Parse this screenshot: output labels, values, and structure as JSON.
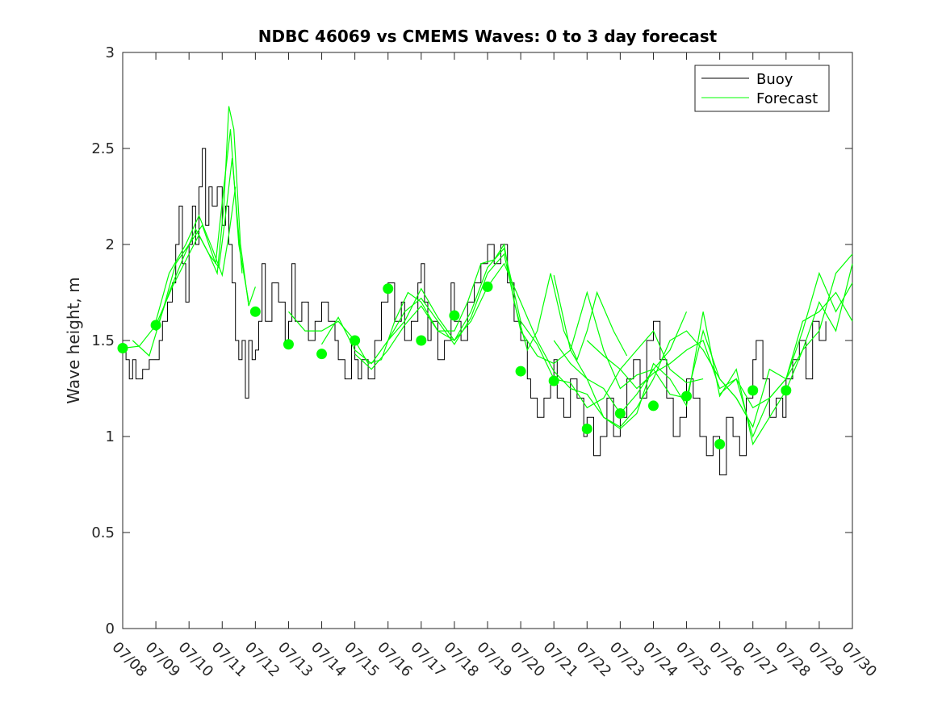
{
  "chart_data": {
    "type": "line",
    "title": "NDBC 46069 vs CMEMS Waves: 0 to 3 day forecast",
    "xlabel": "",
    "ylabel": "Wave height, m",
    "x_ticks": [
      "07/08",
      "07/09",
      "07/10",
      "07/11",
      "07/12",
      "07/13",
      "07/14",
      "07/15",
      "07/16",
      "07/17",
      "07/18",
      "07/19",
      "07/20",
      "07/21",
      "07/22",
      "07/23",
      "07/24",
      "07/25",
      "07/26",
      "07/27",
      "07/28",
      "07/29",
      "07/30"
    ],
    "xlim": [
      0,
      22
    ],
    "ylim": [
      0,
      3
    ],
    "y_ticks": [
      "0",
      "0.5",
      "1",
      "1.5",
      "2",
      "2.5",
      "3"
    ],
    "legend": {
      "position": "top-right",
      "entries": [
        "Buoy",
        "Forecast"
      ]
    },
    "colors": {
      "buoy": "#000000",
      "forecast": "#00ff00"
    },
    "buoy": {
      "name": "Buoy",
      "x": [
        0,
        0.1,
        0.2,
        0.3,
        0.4,
        0.6,
        0.8,
        1.0,
        1.1,
        1.2,
        1.35,
        1.5,
        1.6,
        1.7,
        1.8,
        1.9,
        2.0,
        2.1,
        2.2,
        2.3,
        2.4,
        2.5,
        2.6,
        2.7,
        2.85,
        3.0,
        3.1,
        3.2,
        3.3,
        3.4,
        3.5,
        3.6,
        3.7,
        3.8,
        3.9,
        4.0,
        4.1,
        4.2,
        4.3,
        4.5,
        4.7,
        4.9,
        5.0,
        5.1,
        5.2,
        5.4,
        5.6,
        5.8,
        6.0,
        6.2,
        6.4,
        6.5,
        6.7,
        6.9,
        7.0,
        7.1,
        7.2,
        7.4,
        7.6,
        7.8,
        8.0,
        8.2,
        8.4,
        8.5,
        8.7,
        8.9,
        9.0,
        9.1,
        9.2,
        9.3,
        9.5,
        9.7,
        9.9,
        10.0,
        10.2,
        10.4,
        10.6,
        10.8,
        11.0,
        11.2,
        11.4,
        11.6,
        11.8,
        12.0,
        12.2,
        12.3,
        12.5,
        12.7,
        12.9,
        13.0,
        13.1,
        13.3,
        13.5,
        13.7,
        13.9,
        14.0,
        14.2,
        14.4,
        14.6,
        14.8,
        15.0,
        15.2,
        15.4,
        15.6,
        15.8,
        16.0,
        16.2,
        16.4,
        16.6,
        16.8,
        17.0,
        17.2,
        17.4,
        17.6,
        17.8,
        18.0,
        18.2,
        18.4,
        18.6,
        18.8,
        19.0,
        19.1,
        19.3,
        19.5,
        19.7,
        19.9,
        20.0,
        20.2,
        20.4,
        20.6,
        20.8,
        21.0,
        21.2
      ],
      "values": [
        1.45,
        1.4,
        1.3,
        1.4,
        1.3,
        1.35,
        1.4,
        1.4,
        1.5,
        1.6,
        1.7,
        1.8,
        2.0,
        2.2,
        1.9,
        1.7,
        2.0,
        2.2,
        2.0,
        2.3,
        2.5,
        2.1,
        2.3,
        2.2,
        2.3,
        2.1,
        2.2,
        2.0,
        1.8,
        1.5,
        1.4,
        1.5,
        1.2,
        1.5,
        1.4,
        1.45,
        1.6,
        1.9,
        1.6,
        1.8,
        1.7,
        1.5,
        1.6,
        1.9,
        1.6,
        1.7,
        1.5,
        1.6,
        1.7,
        1.6,
        1.5,
        1.4,
        1.3,
        1.5,
        1.4,
        1.3,
        1.4,
        1.3,
        1.5,
        1.7,
        1.8,
        1.6,
        1.7,
        1.5,
        1.6,
        1.8,
        1.9,
        1.7,
        1.5,
        1.6,
        1.4,
        1.5,
        1.8,
        1.6,
        1.5,
        1.7,
        1.8,
        1.9,
        2.0,
        1.9,
        2.0,
        1.8,
        1.6,
        1.5,
        1.3,
        1.2,
        1.1,
        1.2,
        1.3,
        1.4,
        1.2,
        1.1,
        1.3,
        1.2,
        1.0,
        1.1,
        0.9,
        1.0,
        1.2,
        1.0,
        1.1,
        1.3,
        1.4,
        1.2,
        1.5,
        1.6,
        1.4,
        1.2,
        1.0,
        1.1,
        1.3,
        1.2,
        1.0,
        0.9,
        1.0,
        0.8,
        1.1,
        1.0,
        0.9,
        1.2,
        1.4,
        1.5,
        1.3,
        1.1,
        1.2,
        1.1,
        1.3,
        1.4,
        1.5,
        1.3,
        1.6,
        1.5,
        1.6
      ]
    },
    "forecast_series": [
      {
        "x": [
          0,
          0.5,
          1.0,
          1.5,
          2.0,
          2.3,
          2.6,
          2.85,
          3.05,
          3.2,
          3.35,
          3.55,
          3.8,
          4.0
        ],
        "values": [
          1.46,
          1.47,
          1.58,
          1.78,
          1.95,
          2.05,
          1.95,
          1.85,
          2.2,
          2.72,
          2.6,
          2.0,
          1.68,
          1.78
        ]
      },
      {
        "x": [
          0.3,
          0.8,
          1.2,
          1.6,
          2.0,
          2.4,
          2.8,
          3.05,
          3.25,
          3.5,
          3.8
        ],
        "values": [
          1.5,
          1.42,
          1.65,
          1.9,
          2.0,
          2.1,
          1.9,
          2.3,
          2.6,
          2.0,
          1.7
        ]
      },
      {
        "x": [
          1.0,
          1.4,
          1.8,
          2.2,
          2.6,
          2.9,
          3.1,
          3.3,
          3.6
        ],
        "values": [
          1.55,
          1.75,
          1.92,
          2.08,
          1.95,
          1.88,
          2.15,
          2.45,
          1.85
        ]
      },
      {
        "x": [
          1.0,
          1.4,
          1.9,
          2.3,
          2.7,
          3.0,
          3.2,
          3.4
        ],
        "values": [
          1.6,
          1.85,
          2.0,
          2.15,
          1.98,
          1.84,
          2.05,
          2.3
        ]
      },
      {
        "x": [
          5.0,
          5.5,
          6.0,
          6.5,
          7.0,
          7.4,
          7.8,
          8.2,
          8.6,
          9.0,
          9.5,
          10.0,
          10.4,
          10.8,
          11.2,
          11.5,
          11.8,
          12.2,
          12.5,
          12.9,
          13.3,
          13.7,
          14.0,
          14.3,
          14.8,
          15.2
        ],
        "values": [
          1.65,
          1.55,
          1.55,
          1.6,
          1.5,
          1.38,
          1.4,
          1.6,
          1.75,
          1.7,
          1.55,
          1.55,
          1.7,
          1.9,
          1.92,
          2.0,
          1.7,
          1.45,
          1.55,
          1.85,
          1.55,
          1.4,
          1.55,
          1.75,
          1.55,
          1.42
        ]
      },
      {
        "x": [
          6.0,
          6.5,
          7.0,
          7.5,
          8.0,
          8.5,
          9.0,
          9.5,
          10.0,
          10.5,
          11.0,
          11.5,
          12.0,
          12.5,
          13.0,
          13.5,
          14.0,
          14.5,
          15.0,
          15.5,
          16.0,
          16.5,
          17.0
        ],
        "values": [
          1.48,
          1.62,
          1.45,
          1.38,
          1.5,
          1.65,
          1.72,
          1.6,
          1.48,
          1.62,
          1.85,
          1.95,
          1.55,
          1.42,
          1.38,
          1.45,
          1.3,
          1.25,
          1.12,
          1.22,
          1.35,
          1.45,
          1.65
        ]
      },
      {
        "x": [
          7.0,
          7.5,
          8.0,
          8.5,
          9.0,
          9.5,
          10.0,
          10.5,
          11.0,
          11.5,
          12.0,
          12.5,
          13.0,
          13.5,
          14.0,
          14.5,
          15.0,
          15.5,
          16.0,
          16.5,
          17.0,
          17.5
        ],
        "values": [
          1.43,
          1.35,
          1.45,
          1.58,
          1.68,
          1.55,
          1.5,
          1.65,
          1.88,
          1.98,
          1.6,
          1.48,
          1.3,
          1.28,
          1.15,
          1.2,
          1.35,
          1.45,
          1.55,
          1.35,
          1.28,
          1.3
        ]
      },
      {
        "x": [
          8.0,
          8.5,
          9.0,
          9.5,
          10.0,
          10.5,
          11.0,
          11.5,
          12.0,
          12.5,
          13.0,
          13.5,
          14.0,
          14.5,
          15.0,
          15.5,
          16.0,
          16.5,
          17.0,
          17.5,
          18.0,
          18.5,
          19.0
        ],
        "values": [
          1.5,
          1.6,
          1.77,
          1.62,
          1.5,
          1.6,
          1.78,
          1.9,
          1.7,
          1.5,
          1.34,
          1.25,
          1.22,
          1.1,
          1.05,
          1.15,
          1.3,
          1.5,
          1.55,
          1.45,
          1.3,
          1.2,
          1.05
        ]
      },
      {
        "x": [
          13.0,
          13.5,
          14.0,
          14.5,
          15.0,
          15.5,
          16.0,
          16.5,
          17.0,
          17.5,
          18.0,
          18.5,
          19.0,
          19.5,
          20.0,
          20.5,
          21.0,
          21.5,
          22.0
        ],
        "values": [
          1.5,
          1.38,
          1.3,
          1.1,
          1.04,
          1.12,
          1.38,
          1.3,
          1.16,
          1.65,
          1.21,
          1.35,
          0.96,
          1.1,
          1.24,
          1.45,
          1.55,
          1.85,
          1.95
        ]
      },
      {
        "x": [
          13.0,
          13.5,
          14.0,
          14.5,
          15.0,
          15.5,
          16.0,
          16.5,
          17.0,
          17.5,
          18.0,
          18.5,
          19.0,
          19.5,
          20.0,
          20.5,
          21.0,
          21.5,
          22.0
        ],
        "values": [
          1.84,
          1.45,
          1.75,
          1.45,
          1.25,
          1.32,
          1.35,
          1.22,
          1.2,
          1.55,
          1.3,
          1.2,
          1.05,
          1.35,
          1.3,
          1.6,
          1.65,
          1.75,
          1.6
        ]
      },
      {
        "x": [
          14.0,
          14.5,
          15.0,
          15.5,
          16.0,
          16.5,
          17.0,
          17.5,
          18.0,
          18.5,
          19.0,
          19.5,
          20.0,
          20.5,
          21.0,
          21.5,
          22.0
        ],
        "values": [
          1.5,
          1.42,
          1.35,
          1.25,
          1.33,
          1.38,
          1.45,
          1.5,
          1.25,
          1.3,
          1.15,
          1.2,
          1.3,
          1.45,
          1.7,
          1.55,
          1.9
        ]
      },
      {
        "x": [
          18.0,
          18.5,
          19.0,
          19.5,
          20.0,
          20.5,
          21.0,
          21.5,
          22.0
        ],
        "values": [
          1.22,
          1.3,
          1.0,
          1.2,
          1.3,
          1.55,
          1.85,
          1.65,
          1.8
        ]
      }
    ],
    "forecast_markers": {
      "x": [
        0,
        1,
        4,
        5,
        6,
        7,
        8,
        9,
        10,
        11,
        12,
        13,
        14,
        15,
        16,
        17,
        18,
        19,
        20
      ],
      "values": [
        1.46,
        1.58,
        1.65,
        1.48,
        1.43,
        1.5,
        1.77,
        1.5,
        1.63,
        1.78,
        1.34,
        1.29,
        1.04,
        1.12,
        1.16,
        1.21,
        0.96,
        1.24,
        1.24
      ]
    }
  }
}
